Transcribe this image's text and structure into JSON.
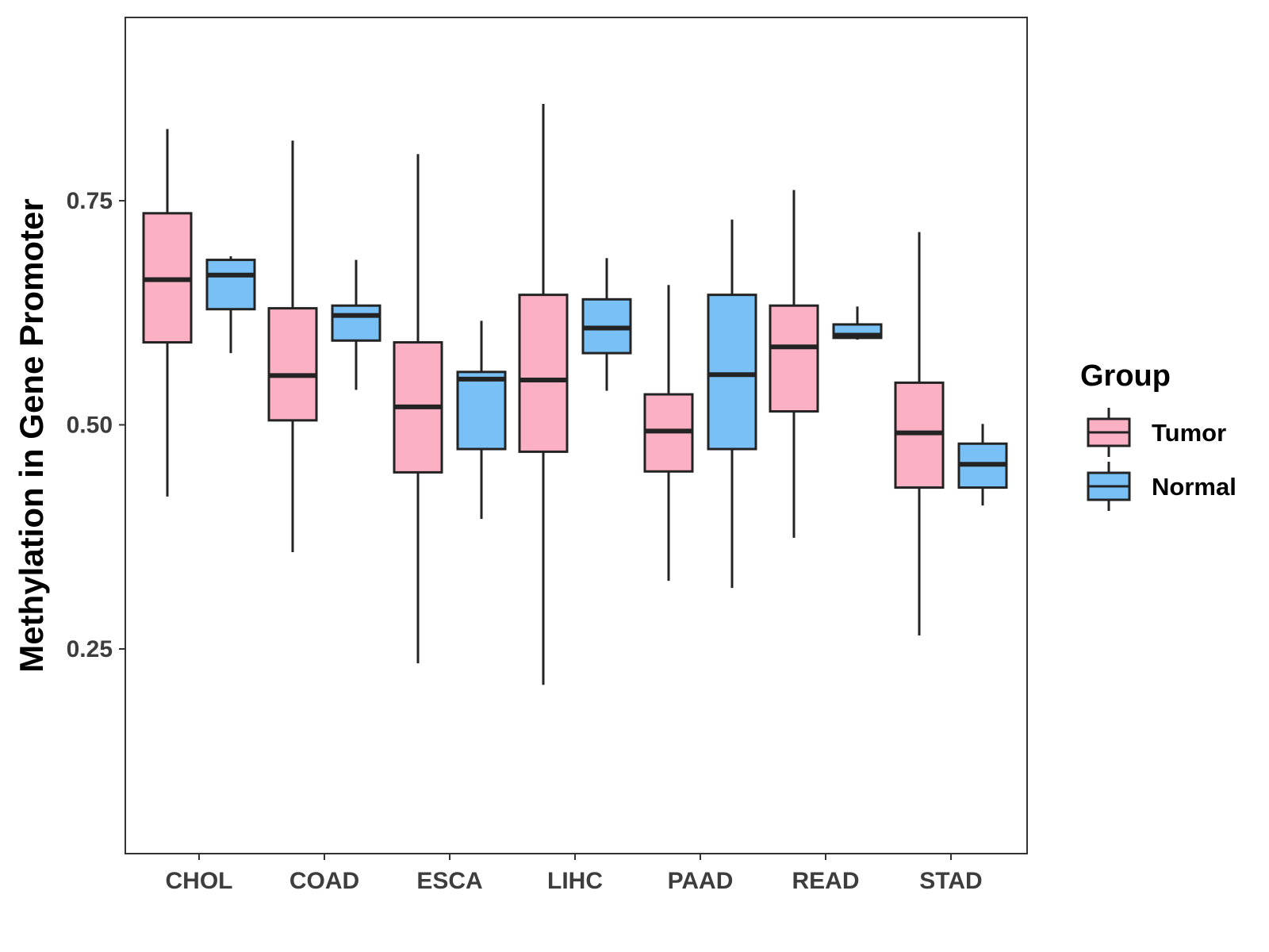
{
  "chart_data": {
    "type": "boxplot",
    "ylabel": "Methylation in Gene Promoter",
    "xlabel": "",
    "ylim": [
      0.12,
      1.05
    ],
    "yticks": [
      "0.25",
      "0.50",
      "0.75",
      "1.00"
    ],
    "categories": [
      "CHOL",
      "COAD",
      "ESCA",
      "LIHC",
      "PAAD",
      "READ",
      "STAD"
    ],
    "legend": {
      "title": "Group",
      "position": "right",
      "entries": [
        "Tumor",
        "Normal"
      ]
    },
    "colors": {
      "Tumor": "#fbb1c3",
      "Normal": "#78c0f6",
      "outline": "#232323"
    },
    "series": [
      {
        "name": "Tumor",
        "boxes": [
          {
            "category": "CHOL",
            "lower_whisker": 0.42,
            "q1": 0.592,
            "median": 0.662,
            "q3": 0.736,
            "upper_whisker": 0.83
          },
          {
            "category": "COAD",
            "lower_whisker": 0.358,
            "q1": 0.505,
            "median": 0.555,
            "q3": 0.63,
            "upper_whisker": 0.817
          },
          {
            "category": "ESCA",
            "lower_whisker": 0.234,
            "q1": 0.447,
            "median": 0.52,
            "q3": 0.592,
            "upper_whisker": 0.802
          },
          {
            "category": "LIHC",
            "lower_whisker": 0.21,
            "q1": 0.47,
            "median": 0.55,
            "q3": 0.645,
            "upper_whisker": 0.858
          },
          {
            "category": "PAAD",
            "lower_whisker": 0.326,
            "q1": 0.448,
            "median": 0.493,
            "q3": 0.534,
            "upper_whisker": 0.656
          },
          {
            "category": "READ",
            "lower_whisker": 0.374,
            "q1": 0.515,
            "median": 0.587,
            "q3": 0.633,
            "upper_whisker": 0.762
          },
          {
            "category": "STAD",
            "lower_whisker": 0.265,
            "q1": 0.43,
            "median": 0.491,
            "q3": 0.547,
            "upper_whisker": 0.715
          }
        ]
      },
      {
        "name": "Normal",
        "boxes": [
          {
            "category": "CHOL",
            "lower_whisker": 0.58,
            "q1": 0.629,
            "median": 0.667,
            "q3": 0.684,
            "upper_whisker": 0.688
          },
          {
            "category": "COAD",
            "lower_whisker": 0.539,
            "q1": 0.594,
            "median": 0.622,
            "q3": 0.633,
            "upper_whisker": 0.684
          },
          {
            "category": "ESCA",
            "lower_whisker": 0.395,
            "q1": 0.473,
            "median": 0.551,
            "q3": 0.559,
            "upper_whisker": 0.616
          },
          {
            "category": "LIHC",
            "lower_whisker": 0.538,
            "q1": 0.58,
            "median": 0.608,
            "q3": 0.64,
            "upper_whisker": 0.686
          },
          {
            "category": "PAAD",
            "lower_whisker": 0.318,
            "q1": 0.473,
            "median": 0.556,
            "q3": 0.645,
            "upper_whisker": 0.729
          },
          {
            "category": "READ",
            "lower_whisker": 0.595,
            "q1": 0.597,
            "median": 0.6,
            "q3": 0.612,
            "upper_whisker": 0.632
          },
          {
            "category": "STAD",
            "lower_whisker": 0.41,
            "q1": 0.43,
            "median": 0.456,
            "q3": 0.479,
            "upper_whisker": 0.501
          }
        ]
      }
    ],
    "significance": [
      {
        "category": "COAD",
        "label": "***",
        "y": 0.99
      },
      {
        "category": "LIHC",
        "label": "**",
        "y": 0.99
      },
      {
        "category": "PAAD",
        "label": "*",
        "y": 0.99
      }
    ]
  }
}
